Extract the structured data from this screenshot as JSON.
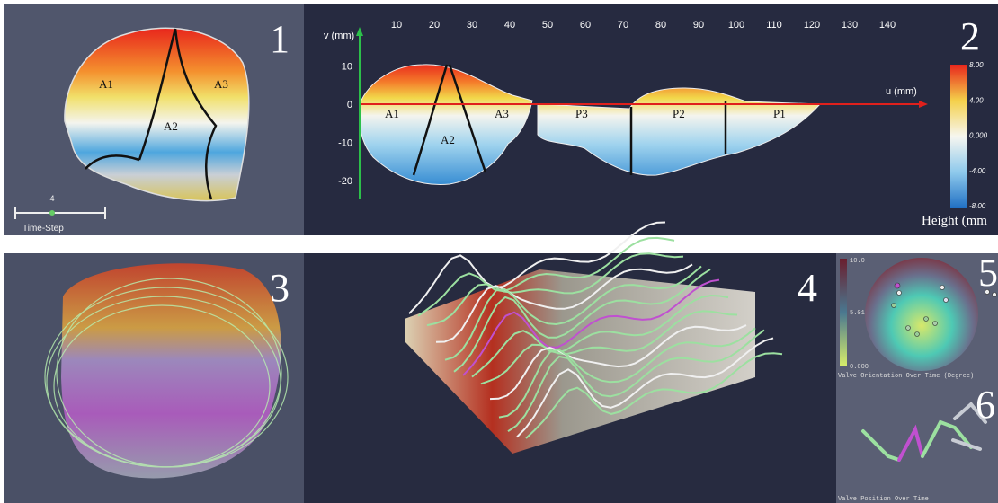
{
  "panel_numbers": [
    "1",
    "2",
    "3",
    "4",
    "5",
    "6"
  ],
  "panel1": {
    "labels": [
      "A1",
      "A2",
      "A3"
    ],
    "time_step_label": "Time-Step",
    "time_step_value": 4
  },
  "panel2": {
    "x_axis_label": "u (mm)",
    "y_axis_label": "v (mm)",
    "xticks": [
      10,
      20,
      30,
      40,
      50,
      60,
      70,
      80,
      90,
      100,
      110,
      120,
      130,
      140
    ],
    "yticks": [
      10,
      0,
      -10,
      -20
    ],
    "anterior_labels": [
      "A1",
      "A2",
      "A3"
    ],
    "posterior_labels": [
      "P3",
      "P2",
      "P1"
    ],
    "colorbar_ticks": [
      "8.00",
      "4.00",
      "0.000",
      "-4.00",
      "-8.00"
    ],
    "colorbar_label": "Height (mm"
  },
  "panel5": {
    "colorbar_ticks": [
      "10.0",
      "5.01",
      "0.000"
    ],
    "caption": "Valve Orientation Over Time (Degree)"
  },
  "panel6": {
    "caption": "Valve Position Over Time"
  }
}
